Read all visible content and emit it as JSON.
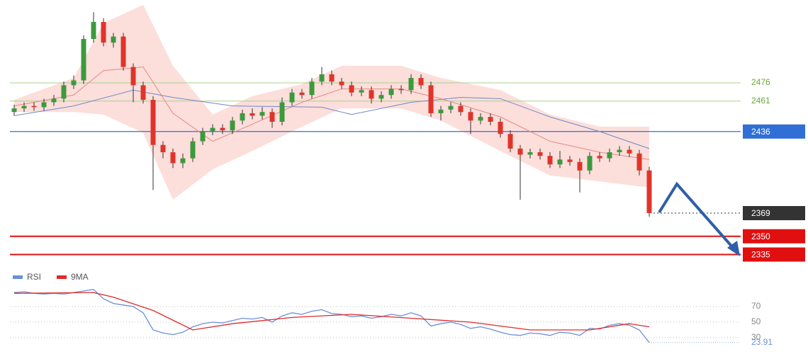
{
  "chart_data": [
    {
      "type": "candlestick",
      "ylim": [
        2326,
        2544
      ],
      "candles": {
        "up_color": "#3c9a3c",
        "down_color": "#e0342b",
        "open": [
          2452,
          2455,
          2457,
          2456,
          2460,
          2463,
          2474,
          2478,
          2512,
          2526,
          2509,
          2514,
          2489,
          2474,
          2462,
          2425,
          2419,
          2410,
          2414,
          2428,
          2436,
          2439,
          2437,
          2445,
          2451,
          2449,
          2452,
          2444,
          2460,
          2468,
          2466,
          2477,
          2483,
          2477,
          2474,
          2468,
          2470,
          2463,
          2466,
          2471,
          2470,
          2480,
          2474,
          2451,
          2454,
          2457,
          2452,
          2445,
          2448,
          2444,
          2434,
          2422,
          2417,
          2419,
          2416,
          2409,
          2413,
          2411,
          2404,
          2416,
          2414,
          2419,
          2421,
          2418,
          2404
        ],
        "high": [
          2458,
          2460,
          2460,
          2463,
          2466,
          2477,
          2482,
          2515,
          2534,
          2529,
          2517,
          2517,
          2492,
          2477,
          2465,
          2428,
          2422,
          2418,
          2431,
          2439,
          2442,
          2442,
          2448,
          2454,
          2455,
          2456,
          2455,
          2464,
          2471,
          2471,
          2480,
          2489,
          2486,
          2480,
          2477,
          2473,
          2473,
          2469,
          2474,
          2474,
          2483,
          2483,
          2477,
          2457,
          2460,
          2460,
          2455,
          2451,
          2451,
          2447,
          2437,
          2425,
          2422,
          2422,
          2419,
          2420,
          2416,
          2414,
          2419,
          2419,
          2422,
          2424,
          2424,
          2421,
          2407
        ],
        "low": [
          2449,
          2452,
          2453,
          2453,
          2457,
          2460,
          2471,
          2475,
          2509,
          2506,
          2505,
          2486,
          2460,
          2459,
          2388,
          2414,
          2406,
          2406,
          2411,
          2425,
          2433,
          2434,
          2434,
          2442,
          2446,
          2446,
          2439,
          2441,
          2457,
          2463,
          2463,
          2474,
          2474,
          2471,
          2465,
          2465,
          2459,
          2460,
          2463,
          2467,
          2467,
          2471,
          2448,
          2445,
          2451,
          2449,
          2434,
          2442,
          2441,
          2431,
          2419,
          2380,
          2414,
          2413,
          2406,
          2406,
          2408,
          2386,
          2401,
          2411,
          2411,
          2416,
          2415,
          2400,
          2366
        ],
        "close": [
          2455,
          2457,
          2456,
          2460,
          2463,
          2474,
          2478,
          2512,
          2526,
          2509,
          2514,
          2489,
          2474,
          2462,
          2425,
          2419,
          2410,
          2414,
          2428,
          2436,
          2439,
          2437,
          2445,
          2451,
          2449,
          2452,
          2444,
          2460,
          2468,
          2466,
          2477,
          2483,
          2477,
          2474,
          2468,
          2470,
          2463,
          2466,
          2471,
          2470,
          2480,
          2474,
          2451,
          2454,
          2457,
          2452,
          2445,
          2448,
          2444,
          2434,
          2422,
          2417,
          2419,
          2416,
          2409,
          2413,
          2411,
          2404,
          2416,
          2414,
          2419,
          2421,
          2418,
          2404,
          2369
        ]
      },
      "band": {
        "color": "#fbd3cf",
        "x": [
          0,
          6,
          9,
          13,
          16,
          20,
          24,
          29,
          33,
          39,
          43,
          49,
          54,
          59,
          64
        ],
        "upper": [
          2462,
          2480,
          2525,
          2540,
          2490,
          2450,
          2465,
          2475,
          2490,
          2490,
          2480,
          2470,
          2450,
          2440,
          2440
        ],
        "lower": [
          2452,
          2452,
          2450,
          2435,
          2380,
          2405,
          2420,
          2440,
          2455,
          2455,
          2445,
          2420,
          2400,
          2395,
          2390
        ]
      },
      "overlays": [
        {
          "color": "#e58a80",
          "x": [
            0,
            6,
            9,
            13,
            16,
            20,
            24,
            29,
            33,
            39,
            43,
            49,
            54,
            59,
            64
          ],
          "values": [
            2457,
            2466,
            2486,
            2489,
            2451,
            2428,
            2442,
            2460,
            2471,
            2471,
            2463,
            2448,
            2428,
            2419,
            2413
          ]
        },
        {
          "color": "#6f88c9",
          "x": [
            0,
            6,
            12,
            16,
            22,
            31,
            34,
            40,
            45,
            49,
            54,
            59,
            64
          ],
          "values": [
            2449,
            2457,
            2470,
            2464,
            2457,
            2456,
            2450,
            2460,
            2464,
            2463,
            2448,
            2436,
            2422
          ]
        }
      ],
      "levels": [
        {
          "value": 2476,
          "color": "#a8d08d",
          "label_color": "#6aa83a",
          "tag": false,
          "dotted": false
        },
        {
          "value": 2461,
          "color": "#a8d08d",
          "label_color": "#6aa83a",
          "tag": false,
          "dotted": false
        },
        {
          "value": 2436,
          "color": "#2f6fd6",
          "label_color": "#ffffff",
          "tag": true,
          "dotted": false
        },
        {
          "value": 2369,
          "color": "#333333",
          "label_color": "#ffffff",
          "tag": true,
          "dotted": true
        },
        {
          "value": 2350,
          "color": "#e01010",
          "label_color": "#ffffff",
          "tag": true,
          "dotted": false
        },
        {
          "value": 2335,
          "color": "#e01010",
          "label_color": "#ffffff",
          "tag": true,
          "dotted": false
        }
      ]
    },
    {
      "type": "line",
      "ylim": [
        10,
        100
      ],
      "yticks": [
        70,
        50,
        30
      ],
      "series": [
        {
          "name": "RSI",
          "color": "#6a8fd8",
          "values": [
            88,
            89,
            87,
            86,
            87,
            86,
            88,
            90,
            92,
            80,
            74,
            72,
            70,
            62,
            40,
            36,
            34,
            37,
            44,
            48,
            50,
            49,
            52,
            55,
            54,
            56,
            50,
            58,
            62,
            60,
            64,
            66,
            61,
            60,
            57,
            58,
            55,
            57,
            60,
            58,
            62,
            58,
            45,
            48,
            50,
            47,
            42,
            44,
            41,
            37,
            34,
            33,
            36,
            35,
            33,
            37,
            36,
            33,
            42,
            41,
            46,
            48,
            46,
            40,
            23.91
          ]
        },
        {
          "name": "9MA",
          "color": "#e02a2a",
          "x": [
            0,
            8,
            10,
            14,
            18,
            22,
            28,
            34,
            40,
            46,
            52,
            58,
            62,
            64
          ],
          "values": [
            87,
            88,
            82,
            65,
            40,
            48,
            56,
            60,
            55,
            50,
            40,
            40,
            48,
            44
          ]
        }
      ]
    }
  ]
}
